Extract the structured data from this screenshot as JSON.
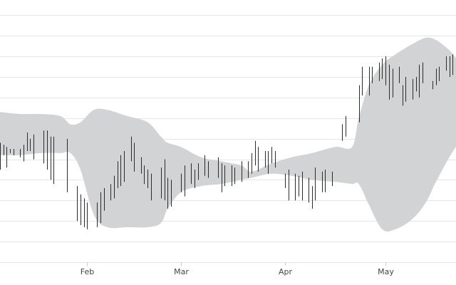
{
  "chart_data": {
    "type": "ohlc",
    "title": "",
    "xlabel": "",
    "ylabel": "",
    "x_ticks": [
      {
        "label": "Feb",
        "date": "2019-02-01"
      },
      {
        "label": "Mar",
        "date": "2019-03-01"
      },
      {
        "label": "Apr",
        "date": "2019-04-01"
      },
      {
        "label": "May",
        "date": "2019-05-01"
      }
    ],
    "xlim": [
      "2019-01-06",
      "2019-05-22"
    ],
    "ylim": [
      0,
      12.6
    ],
    "grid": {
      "horizontal": true,
      "vertical": false
    },
    "band": {
      "dates": [
        "2019-01-06",
        "2019-01-12",
        "2019-01-18",
        "2019-01-24",
        "2019-01-27",
        "2019-01-30",
        "2019-02-03",
        "2019-02-07",
        "2019-02-13",
        "2019-02-19",
        "2019-02-23",
        "2019-02-25",
        "2019-03-01",
        "2019-03-07",
        "2019-03-13",
        "2019-03-19",
        "2019-03-22",
        "2019-03-28",
        "2019-04-03",
        "2019-04-09",
        "2019-04-16",
        "2019-04-21",
        "2019-04-23",
        "2019-04-26",
        "2019-04-30",
        "2019-05-04",
        "2019-05-09",
        "2019-05-13",
        "2019-05-16",
        "2019-05-20",
        "2019-05-22"
      ],
      "upper": [
        7.3,
        7.2,
        7.2,
        7.1,
        6.7,
        6.8,
        7.4,
        7.4,
        7.1,
        6.8,
        6.1,
        5.8,
        5.6,
        5.1,
        4.9,
        4.7,
        4.4,
        4.8,
        5.1,
        5.3,
        5.6,
        5.6,
        7.0,
        8.6,
        9.6,
        10.1,
        10.6,
        10.9,
        10.8,
        10.3,
        9.9
      ],
      "lower": [
        5.2,
        5.2,
        5.3,
        5.3,
        5.3,
        4.5,
        2.3,
        1.7,
        1.7,
        1.7,
        1.9,
        2.6,
        3.4,
        3.7,
        3.8,
        4.0,
        4.1,
        4.3,
        4.2,
        4.0,
        3.9,
        3.8,
        3.8,
        2.8,
        1.6,
        1.6,
        2.1,
        2.9,
        3.9,
        5.1,
        5.6
      ]
    },
    "bars": {
      "dates": [
        "2019-01-06",
        "2019-01-07",
        "2019-01-08",
        "2019-01-09",
        "2019-01-10",
        "2019-01-12",
        "2019-01-13",
        "2019-01-14",
        "2019-01-15",
        "2019-01-16",
        "2019-01-19",
        "2019-01-20",
        "2019-01-21",
        "2019-01-22",
        "2019-01-26",
        "2019-01-29",
        "2019-01-30",
        "2019-01-31",
        "2019-02-01",
        "2019-02-04",
        "2019-02-05",
        "2019-02-06",
        "2019-02-08",
        "2019-02-09",
        "2019-02-10",
        "2019-02-11",
        "2019-02-12",
        "2019-02-14",
        "2019-02-15",
        "2019-02-17",
        "2019-02-18",
        "2019-02-19",
        "2019-02-20",
        "2019-02-23",
        "2019-02-24",
        "2019-02-25",
        "2019-02-26",
        "2019-03-01",
        "2019-03-02",
        "2019-03-04",
        "2019-03-05",
        "2019-03-06",
        "2019-03-08",
        "2019-03-09",
        "2019-03-12",
        "2019-03-13",
        "2019-03-14",
        "2019-03-16",
        "2019-03-17",
        "2019-03-19",
        "2019-03-21",
        "2019-03-22",
        "2019-03-23",
        "2019-03-24",
        "2019-03-26",
        "2019-03-27",
        "2019-03-28",
        "2019-03-29",
        "2019-04-01",
        "2019-04-02",
        "2019-04-04",
        "2019-04-05",
        "2019-04-06",
        "2019-04-08",
        "2019-04-09",
        "2019-04-10",
        "2019-04-12",
        "2019-04-13",
        "2019-04-15",
        "2019-04-18",
        "2019-04-19",
        "2019-04-23",
        "2019-04-24",
        "2019-04-26",
        "2019-04-27",
        "2019-04-29",
        "2019-04-30",
        "2019-05-01",
        "2019-05-02",
        "2019-05-03",
        "2019-05-05",
        "2019-05-06",
        "2019-05-07",
        "2019-05-09",
        "2019-05-10",
        "2019-05-11",
        "2019-05-12",
        "2019-05-15",
        "2019-05-16",
        "2019-05-17",
        "2019-05-19",
        "2019-05-20",
        "2019-05-21"
      ],
      "high": [
        5.8,
        5.7,
        5.6,
        5.5,
        5.5,
        5.5,
        5.7,
        6.3,
        6.0,
        6.2,
        6.4,
        6.4,
        6.1,
        6.1,
        6.0,
        3.7,
        3.3,
        3.1,
        2.9,
        2.9,
        3.4,
        3.6,
        3.8,
        4.2,
        4.9,
        5.2,
        5.4,
        6.1,
        5.8,
        5.1,
        4.7,
        4.5,
        4.3,
        4.6,
        5.0,
        4.1,
        4.0,
        4.3,
        4.7,
        4.8,
        4.5,
        4.8,
        5.2,
        4.9,
        5.1,
        4.8,
        4.7,
        4.7,
        4.6,
        4.9,
        4.9,
        5.3,
        5.9,
        5.6,
        5.4,
        5.4,
        5.6,
        5.4,
        4.3,
        4.5,
        4.3,
        4.2,
        4.4,
        4.1,
        3.7,
        4.6,
        4.4,
        4.5,
        4.4,
        6.7,
        7.1,
        8.6,
        9.5,
        9.5,
        9.5,
        9.7,
        9.9,
        10.0,
        9.6,
        9.4,
        9.5,
        8.6,
        9.0,
        8.9,
        9.0,
        9.6,
        9.7,
        8.8,
        9.4,
        9.5,
        10.0,
        10.0,
        10.1
      ],
      "low": [
        4.5,
        5.2,
        4.6,
        5.3,
        5.2,
        5.1,
        4.9,
        5.4,
        5.4,
        5.0,
        4.8,
        4.5,
        4.0,
        3.8,
        3.4,
        2.0,
        1.8,
        1.7,
        1.6,
        1.7,
        1.9,
        2.5,
        3.0,
        3.1,
        3.6,
        3.7,
        3.9,
        4.9,
        4.4,
        4.3,
        3.8,
        3.6,
        3.0,
        3.1,
        3.0,
        2.6,
        2.7,
        3.4,
        3.2,
        3.8,
        3.6,
        4.0,
        4.2,
        4.1,
        4.1,
        3.4,
        3.7,
        3.7,
        3.8,
        3.9,
        4.1,
        4.3,
        4.7,
        4.4,
        4.6,
        4.3,
        4.8,
        4.6,
        3.6,
        3.0,
        3.0,
        3.2,
        3.0,
        2.9,
        2.6,
        3.0,
        3.4,
        3.4,
        3.7,
        5.9,
        6.1,
        6.8,
        8.1,
        8.1,
        8.7,
        8.8,
        8.9,
        8.6,
        7.9,
        8.0,
        8.7,
        7.6,
        7.8,
        7.9,
        8.3,
        8.0,
        8.7,
        8.4,
        8.6,
        8.8,
        9.3,
        9.0,
        9.1
      ]
    }
  }
}
